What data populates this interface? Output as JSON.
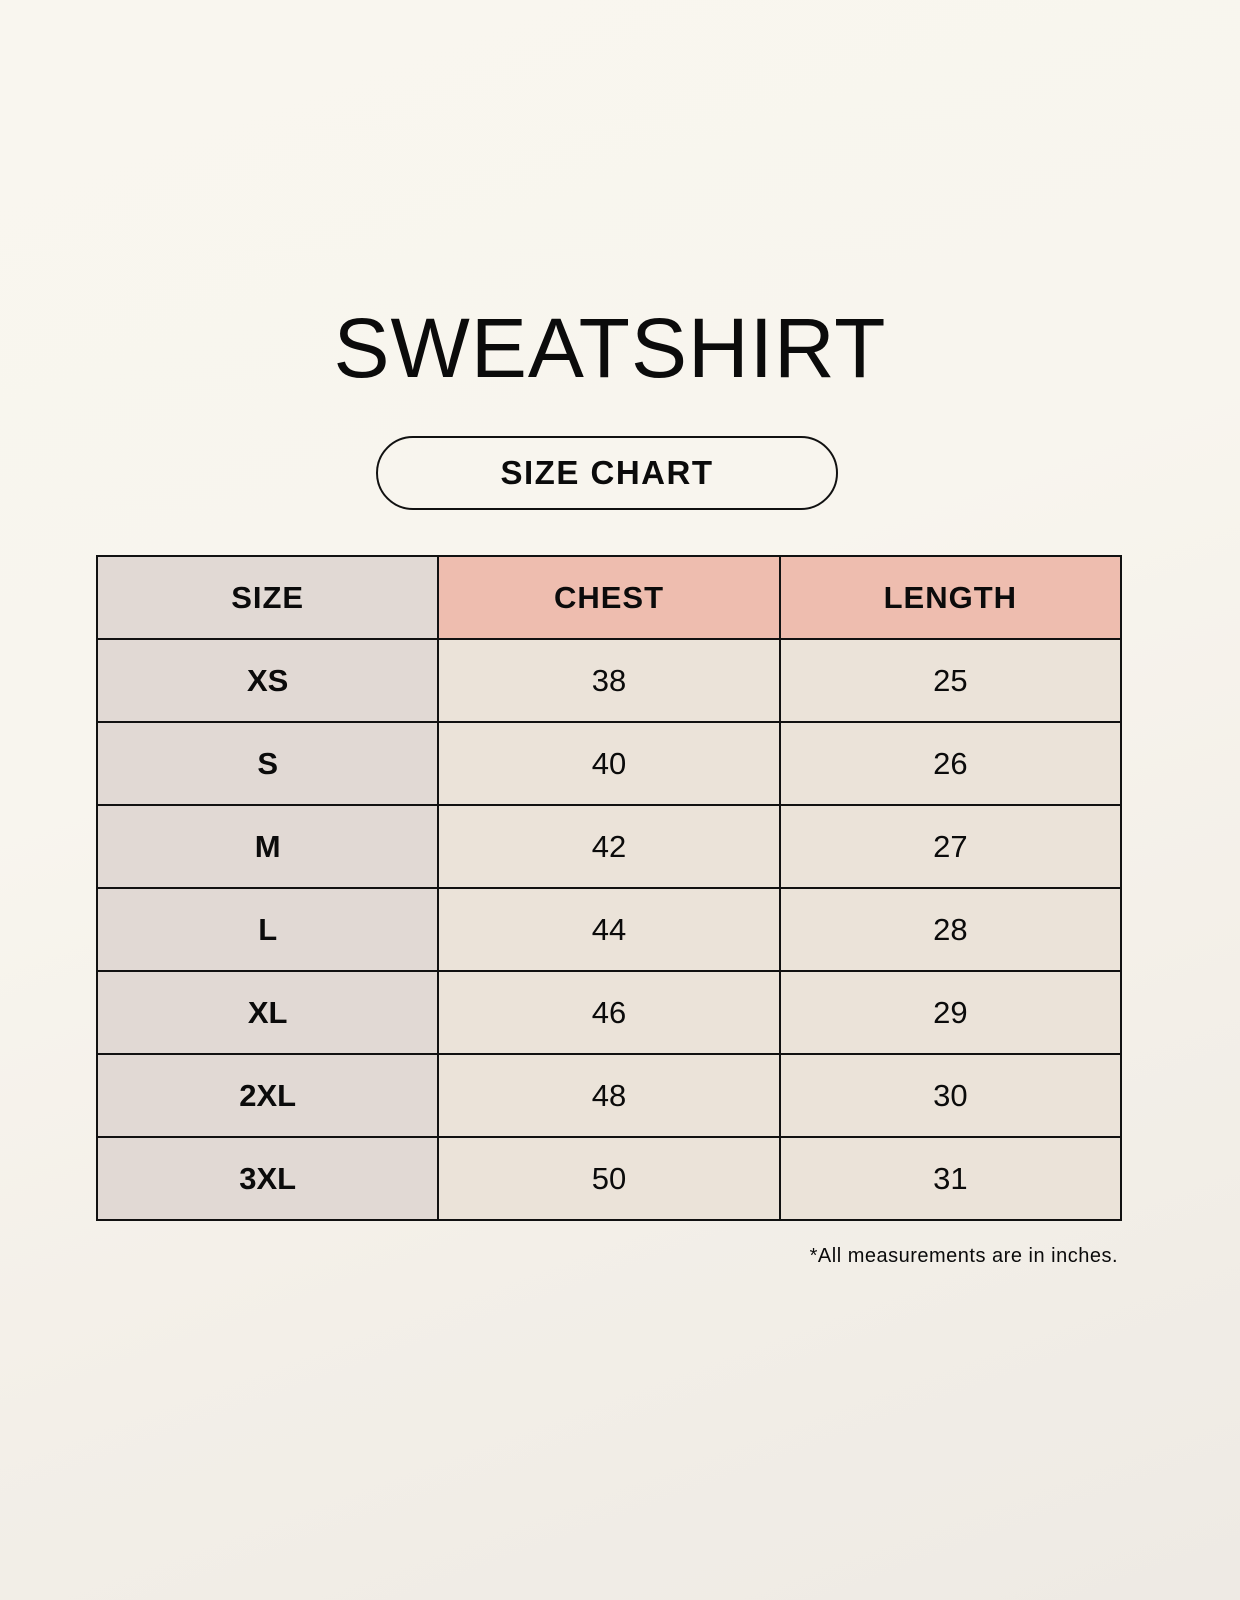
{
  "title": "SWEATSHIRT",
  "subtitle": "SIZE CHART",
  "table": {
    "headers": [
      "SIZE",
      "CHEST",
      "LENGTH"
    ],
    "rows": [
      [
        "XS",
        "38",
        "25"
      ],
      [
        "S",
        "40",
        "26"
      ],
      [
        "M",
        "42",
        "27"
      ],
      [
        "L",
        "44",
        "28"
      ],
      [
        "XL",
        "46",
        "29"
      ],
      [
        "2XL",
        "48",
        "30"
      ],
      [
        "3XL",
        "50",
        "31"
      ]
    ]
  },
  "footnote": "*All measurements are in inches.",
  "colors": {
    "size_column": "#e1d9d4",
    "header_accent": "#eebdaf",
    "value_cells": "#ebe3d9"
  }
}
